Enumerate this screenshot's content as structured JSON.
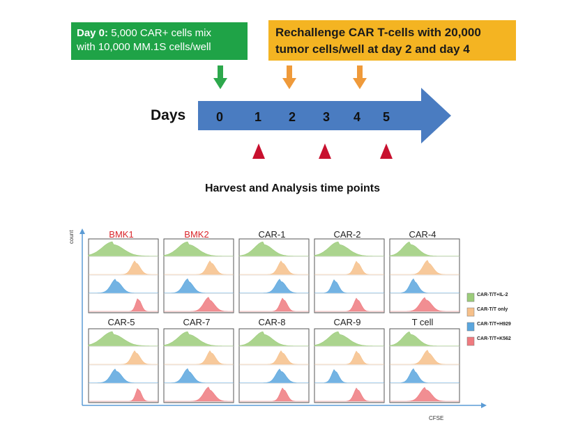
{
  "top": {
    "day0_bold": "Day 0:",
    "day0_text": " 5,000 CAR+ cells mix",
    "day0_line2": "with 10,000 MM.1S cells/well",
    "rechallenge_line1": "Rechallenge CAR T-cells with 20,000",
    "rechallenge_line2": "tumor cells/well at day 2 and day 4"
  },
  "timeline": {
    "label": "Days",
    "days": [
      "0",
      "1",
      "2",
      "3",
      "4",
      "5"
    ],
    "arrow_color": "#4a7cc1",
    "harvest_days": [
      1,
      3,
      5
    ],
    "harvest_marker_color": "#c8102e"
  },
  "harvest_title": "Harvest and Analysis time points",
  "panels": {
    "row1": [
      {
        "title": "BMK1",
        "color": "#d9262b"
      },
      {
        "title": "BMK2",
        "color": "#d9262b"
      },
      {
        "title": "CAR-1",
        "color": "#222222"
      },
      {
        "title": "CAR-2",
        "color": "#222222"
      },
      {
        "title": "CAR-4",
        "color": "#222222"
      }
    ],
    "row2": [
      {
        "title": "CAR-5",
        "color": "#222222"
      },
      {
        "title": "CAR-7",
        "color": "#222222"
      },
      {
        "title": "CAR-8",
        "color": "#222222"
      },
      {
        "title": "CAR-9",
        "color": "#222222"
      },
      {
        "title": "T cell",
        "color": "#222222"
      }
    ]
  },
  "axes": {
    "y_label": "count",
    "x_label": "CFSE"
  },
  "legend": [
    {
      "label": "CAR-T/T+IL-2",
      "color": "#9ccc7a"
    },
    {
      "label": "CAR-T/T only",
      "color": "#f6c08a"
    },
    {
      "label": "CAR-T/T+H929",
      "color": "#5aa6de"
    },
    {
      "label": "CAR-T/T+K562",
      "color": "#ef7a7f"
    }
  ]
}
